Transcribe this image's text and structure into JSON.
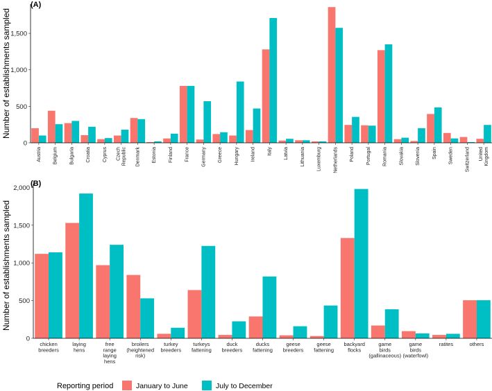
{
  "legend": {
    "title": "Reporting period",
    "items": [
      {
        "label": "January to June",
        "color": "#F8766D"
      },
      {
        "label": "July to December",
        "color": "#00BFC4"
      }
    ]
  },
  "chart_data": [
    {
      "type": "bar",
      "panel": "(A)",
      "ylabel": "Number of establishments sampled",
      "xlabel": "",
      "ylim": [
        0,
        1900
      ],
      "yticks": [
        0,
        500,
        1000,
        1500
      ],
      "ytick_labels": [
        "0",
        "500",
        "1,000",
        "1,500"
      ],
      "categories": [
        "Austria",
        "Belgium",
        "Bulgaria",
        "Croatia",
        "Cyprus",
        "Czech\nRepublic",
        "Denmark",
        "Estonia",
        "Finland",
        "France",
        "Germany",
        "Greece",
        "Hungary",
        "Ireland",
        "Italy",
        "Latvia",
        "Lithuania",
        "Luxemburg",
        "Netherlands",
        "Poland",
        "Portugal",
        "Romania",
        "Slovakia",
        "Slovenia",
        "Spain",
        "Sweden",
        "Switzerland",
        "United\nKingdom"
      ],
      "series": [
        {
          "name": "January to June",
          "color": "#F8766D",
          "values": [
            200,
            440,
            270,
            105,
            50,
            100,
            340,
            10,
            60,
            780,
            45,
            120,
            100,
            175,
            1280,
            30,
            35,
            20,
            1860,
            245,
            240,
            1270,
            50,
            25,
            395,
            135,
            80,
            55
          ]
        },
        {
          "name": "July to December",
          "color": "#00BFC4",
          "values": [
            100,
            255,
            300,
            220,
            65,
            180,
            325,
            20,
            125,
            780,
            570,
            145,
            840,
            470,
            1710,
            55,
            35,
            20,
            1575,
            355,
            235,
            1350,
            70,
            200,
            485,
            60,
            10,
            245
          ]
        }
      ]
    },
    {
      "type": "bar",
      "panel": "(B)",
      "ylabel": "Number of establishments sampled",
      "xlabel": "",
      "ylim": [
        0,
        2050
      ],
      "yticks": [
        0,
        500,
        1000,
        1500,
        2000
      ],
      "ytick_labels": [
        "0",
        "500",
        "1,000",
        "1,500",
        "2,000"
      ],
      "categories": [
        "chicken\nbreeders",
        "laying\nhens",
        "free\nrange\nlaying\nhens",
        "broilers\n(heightened\nrisk)",
        "turkey\nbreeders",
        "turkeys\nfattening",
        "duck\nbreeders",
        "ducks\nfattening",
        "geese\nbreeders",
        "geese\nfattening",
        "backyard\nflocks",
        "game\nbirds\n(gallinaceous)",
        "game\nbirds\n(waterfowl)",
        "ratites",
        "others"
      ],
      "series": [
        {
          "name": "January to June",
          "color": "#F8766D",
          "values": [
            1120,
            1530,
            970,
            840,
            60,
            640,
            45,
            290,
            40,
            30,
            1330,
            170,
            95,
            45,
            505
          ]
        },
        {
          "name": "July to December",
          "color": "#00BFC4",
          "values": [
            1140,
            1920,
            1240,
            530,
            140,
            1225,
            225,
            820,
            160,
            435,
            1980,
            385,
            65,
            60,
            505
          ]
        }
      ]
    }
  ]
}
